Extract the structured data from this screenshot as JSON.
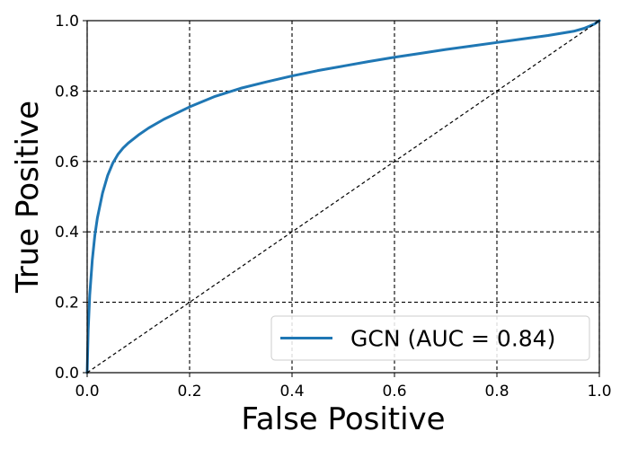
{
  "chart_data": {
    "type": "line",
    "title": "",
    "xlabel": "False Positive",
    "ylabel": "True Positive",
    "xlim": [
      0.0,
      1.0
    ],
    "ylim": [
      0.0,
      1.0
    ],
    "xticks": [
      "0.0",
      "0.2",
      "0.4",
      "0.6",
      "0.8",
      "1.0"
    ],
    "yticks": [
      "0.0",
      "0.2",
      "0.4",
      "0.6",
      "0.8",
      "1.0"
    ],
    "grid": true,
    "grid_style": "dashed",
    "legend_position": "lower-right",
    "series": [
      {
        "name": "GCN (AUC = 0.84)",
        "color": "#1f77b4",
        "x": [
          0.0,
          0.002,
          0.005,
          0.01,
          0.015,
          0.02,
          0.03,
          0.04,
          0.05,
          0.06,
          0.07,
          0.08,
          0.1,
          0.12,
          0.15,
          0.2,
          0.25,
          0.3,
          0.35,
          0.4,
          0.45,
          0.5,
          0.55,
          0.6,
          0.65,
          0.7,
          0.75,
          0.8,
          0.85,
          0.9,
          0.95,
          0.97,
          0.99,
          1.0
        ],
        "y": [
          0.0,
          0.12,
          0.22,
          0.32,
          0.39,
          0.44,
          0.51,
          0.56,
          0.595,
          0.62,
          0.638,
          0.652,
          0.675,
          0.695,
          0.72,
          0.755,
          0.785,
          0.808,
          0.826,
          0.843,
          0.858,
          0.871,
          0.884,
          0.896,
          0.907,
          0.918,
          0.928,
          0.938,
          0.948,
          0.958,
          0.97,
          0.978,
          0.99,
          1.0
        ]
      },
      {
        "name": "",
        "style": "dashed",
        "color": "#000000",
        "x": [
          0.0,
          1.0
        ],
        "y": [
          0.0,
          1.0
        ]
      }
    ]
  }
}
